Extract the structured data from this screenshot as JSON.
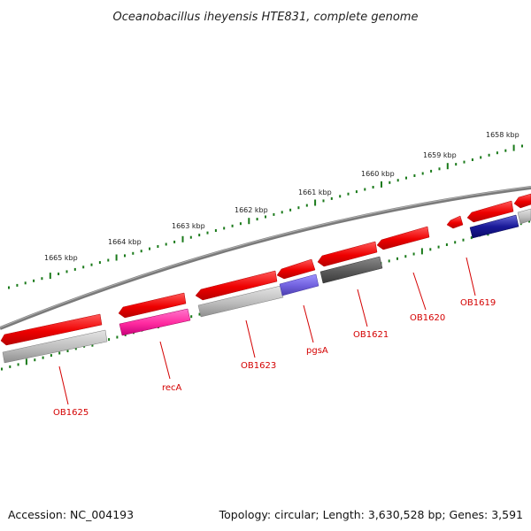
{
  "title": "Oceanobacillus iheyensis HTE831, complete genome",
  "footer": {
    "accession": "Accession: NC_004193",
    "summary": "Topology: circular; Length: 3,630,528 bp; Genes: 3,591"
  },
  "scale_labels": [
    "1658 kbp",
    "1659 kbp",
    "1660 kbp",
    "1661 kbp",
    "1662 kbp",
    "1663 kbp",
    "1664 kbp",
    "1665 kbp"
  ],
  "gene_labels": [
    "OB1619",
    "OB1620",
    "OB1621",
    "pgsA",
    "OB1623",
    "recA",
    "OB1625"
  ],
  "colors": {
    "forward_cds": "#ff0000",
    "cog_gray": "#c0c0c0",
    "cog_dark": "#606060",
    "cog_purple": "#7766dd",
    "cog_magenta": "#ff33aa",
    "cog_navy": "#1a1a99",
    "backbone": "#808080",
    "ticks": "#1a7a1a",
    "label": "#d40000"
  }
}
